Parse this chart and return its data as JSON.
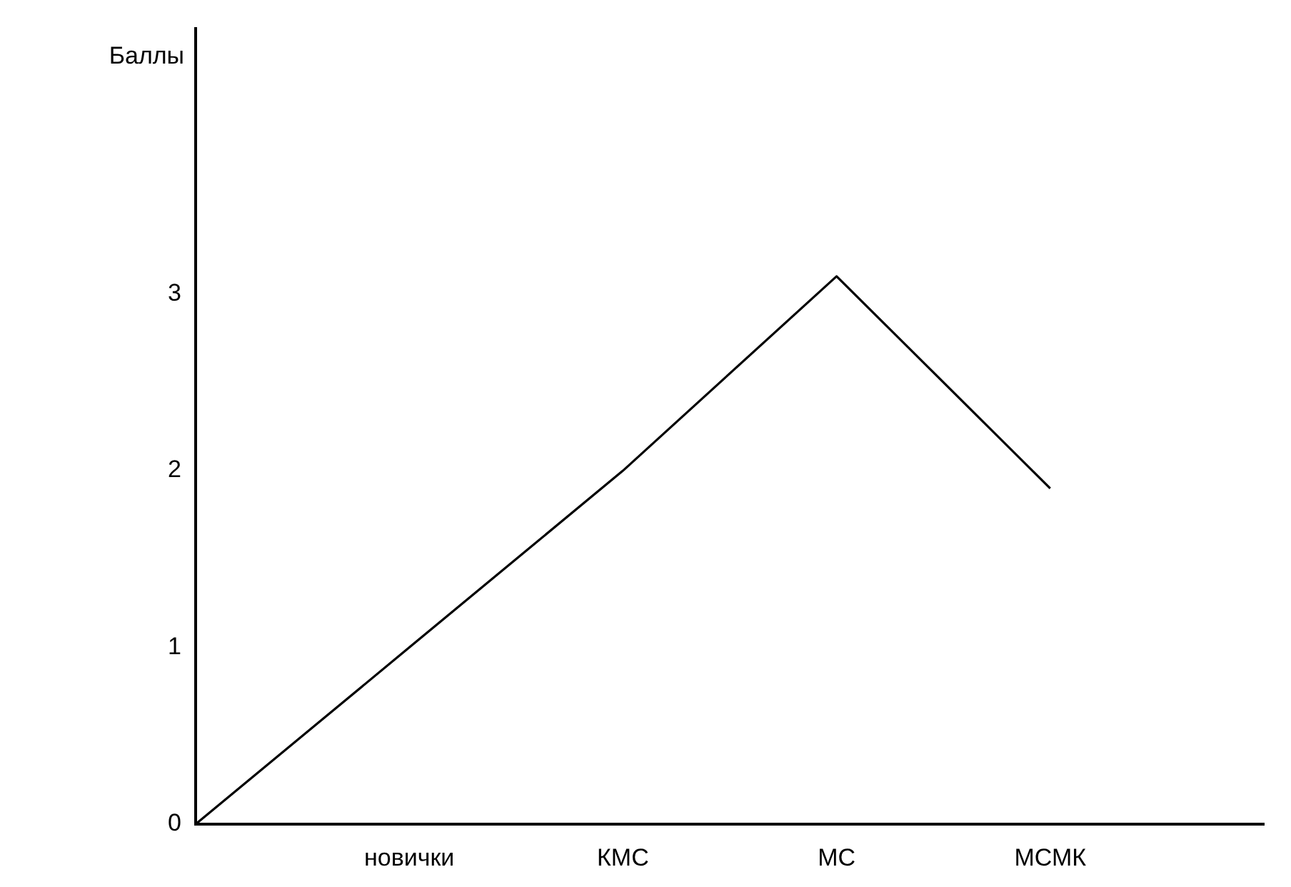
{
  "chart_data": {
    "type": "line",
    "ylabel": "Баллы",
    "categories": [
      null,
      "новички",
      "КМС",
      "МС",
      "МСМК",
      null
    ],
    "series": [
      {
        "color": "#000000",
        "values": [
          0,
          1,
          2,
          3.1,
          1.9,
          null
        ]
      }
    ],
    "ylim": [
      0,
      4.5
    ],
    "yticks": [
      0,
      1,
      2,
      3
    ],
    "grid": false,
    "legend": false,
    "marker": "none"
  }
}
